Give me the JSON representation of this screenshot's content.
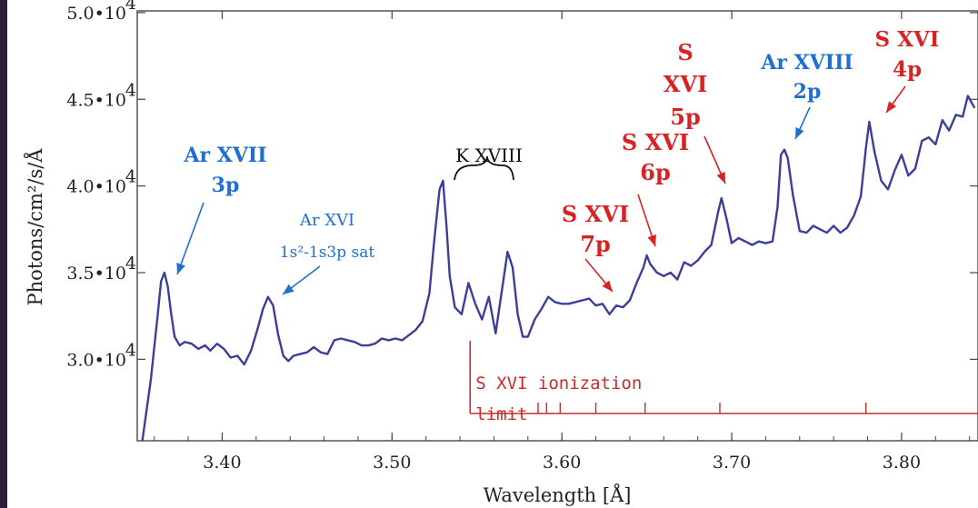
{
  "chart_data": {
    "type": "line",
    "xlabel": "Wavelength [Å]",
    "ylabel": "Photons/cm²/s/Å",
    "xlim": [
      3.35,
      3.845
    ],
    "ylim": [
      25300,
      50100
    ],
    "x_ticks": [
      3.4,
      3.5,
      3.6,
      3.7,
      3.8
    ],
    "x_tick_labels": [
      "3.40",
      "3.50",
      "3.60",
      "3.70",
      "3.80"
    ],
    "y_ticks": [
      30000,
      35000,
      40000,
      45000,
      50000
    ],
    "y_tick_labels": [
      "3.0•10",
      "3.5•10",
      "4.0•10",
      "4.5•10",
      "5.0•10"
    ],
    "y_tick_exponent": "4",
    "line_color": "#3a3f9a",
    "series": [
      {
        "x": [
          3.353,
          3.358,
          3.362,
          3.364,
          3.366,
          3.368,
          3.37,
          3.372,
          3.375,
          3.378,
          3.382,
          3.386,
          3.39,
          3.393,
          3.397,
          3.401,
          3.405,
          3.409,
          3.413,
          3.417,
          3.421,
          3.424,
          3.427,
          3.43,
          3.433,
          3.436,
          3.439,
          3.442,
          3.446,
          3.45,
          3.454,
          3.458,
          3.462,
          3.466,
          3.47,
          3.474,
          3.478,
          3.482,
          3.486,
          3.49,
          3.494,
          3.498,
          3.502,
          3.506,
          3.51,
          3.514,
          3.518,
          3.522,
          3.525,
          3.528,
          3.53,
          3.532,
          3.534,
          3.537,
          3.541,
          3.545,
          3.549,
          3.553,
          3.557,
          3.561,
          3.565,
          3.568,
          3.571,
          3.574,
          3.577,
          3.58,
          3.584,
          3.588,
          3.592,
          3.596,
          3.6,
          3.604,
          3.608,
          3.612,
          3.616,
          3.62,
          3.624,
          3.628,
          3.632,
          3.636,
          3.64,
          3.644,
          3.648,
          3.65,
          3.652,
          3.656,
          3.66,
          3.664,
          3.668,
          3.672,
          3.676,
          3.68,
          3.684,
          3.688,
          3.692,
          3.694,
          3.697,
          3.7,
          3.704,
          3.708,
          3.712,
          3.716,
          3.72,
          3.724,
          3.727,
          3.729,
          3.731,
          3.733,
          3.736,
          3.74,
          3.744,
          3.748,
          3.752,
          3.756,
          3.76,
          3.764,
          3.768,
          3.772,
          3.776,
          3.779,
          3.781,
          3.784,
          3.788,
          3.792,
          3.796,
          3.8,
          3.804,
          3.808,
          3.812,
          3.816,
          3.82,
          3.824,
          3.828,
          3.832,
          3.836,
          3.839,
          3.843
        ],
        "y": [
          25300,
          28800,
          32500,
          34500,
          35000,
          34200,
          32600,
          31300,
          30800,
          31000,
          30900,
          30600,
          30800,
          30500,
          30900,
          30600,
          30100,
          30200,
          29700,
          30500,
          31800,
          32900,
          33600,
          33100,
          31400,
          30200,
          29900,
          30200,
          30300,
          30400,
          30700,
          30400,
          30300,
          31100,
          31200,
          31100,
          31000,
          30800,
          30800,
          30900,
          31200,
          31100,
          31200,
          31100,
          31400,
          31700,
          32200,
          33800,
          37000,
          39800,
          40300,
          37800,
          34800,
          33000,
          32600,
          34400,
          33200,
          32300,
          33600,
          31500,
          34200,
          36200,
          35300,
          32600,
          31300,
          31300,
          32300,
          32900,
          33600,
          33300,
          33200,
          33200,
          33300,
          33400,
          33500,
          33100,
          33200,
          32600,
          33100,
          33000,
          33400,
          34400,
          35300,
          36000,
          35500,
          35000,
          34800,
          35000,
          34600,
          35600,
          35400,
          35700,
          36200,
          36600,
          38500,
          39300,
          38100,
          36700,
          37000,
          36800,
          36600,
          36800,
          36700,
          36800,
          38800,
          41800,
          42100,
          41600,
          39500,
          37400,
          37300,
          37700,
          37500,
          37300,
          37700,
          37300,
          37600,
          38300,
          39400,
          42200,
          43700,
          42000,
          40300,
          39800,
          40900,
          41800,
          40600,
          41000,
          42600,
          42800,
          42400,
          43800,
          43200,
          44100,
          44000,
          45200,
          44500
        ]
      }
    ],
    "annotations": [
      {
        "text": "Ar XVII",
        "color": "#1f6fd0"
      },
      {
        "text": "3p",
        "color": "#1f6fd0"
      },
      {
        "text": "Ar XVI",
        "color": "#1f6fd0"
      },
      {
        "text": "1s²-1s3p sat",
        "color": "#1f6fd0"
      },
      {
        "text": "K XVIII",
        "color": "#111111"
      },
      {
        "text": "S XVI",
        "color": "#d42424"
      },
      {
        "text": "7p",
        "color": "#d42424"
      },
      {
        "text": "S XVI",
        "color": "#d42424"
      },
      {
        "text": "6p",
        "color": "#d42424"
      },
      {
        "text": "S",
        "color": "#d42424"
      },
      {
        "text": "XVI",
        "color": "#d42424"
      },
      {
        "text": "5p",
        "color": "#d42424"
      },
      {
        "text": "Ar XVIII",
        "color": "#1f6fd0"
      },
      {
        "text": "2p",
        "color": "#1f6fd0"
      },
      {
        "text": "S XVI",
        "color": "#d42424"
      },
      {
        "text": "4p",
        "color": "#d42424"
      }
    ],
    "ionization": {
      "label_line1": "S XVI ionization",
      "label_line2": "limit",
      "limit_x": 3.546,
      "level_marks_x": [
        3.586,
        3.591,
        3.599,
        3.62,
        3.649,
        3.693,
        3.779
      ],
      "color": "#c92b2b"
    }
  }
}
